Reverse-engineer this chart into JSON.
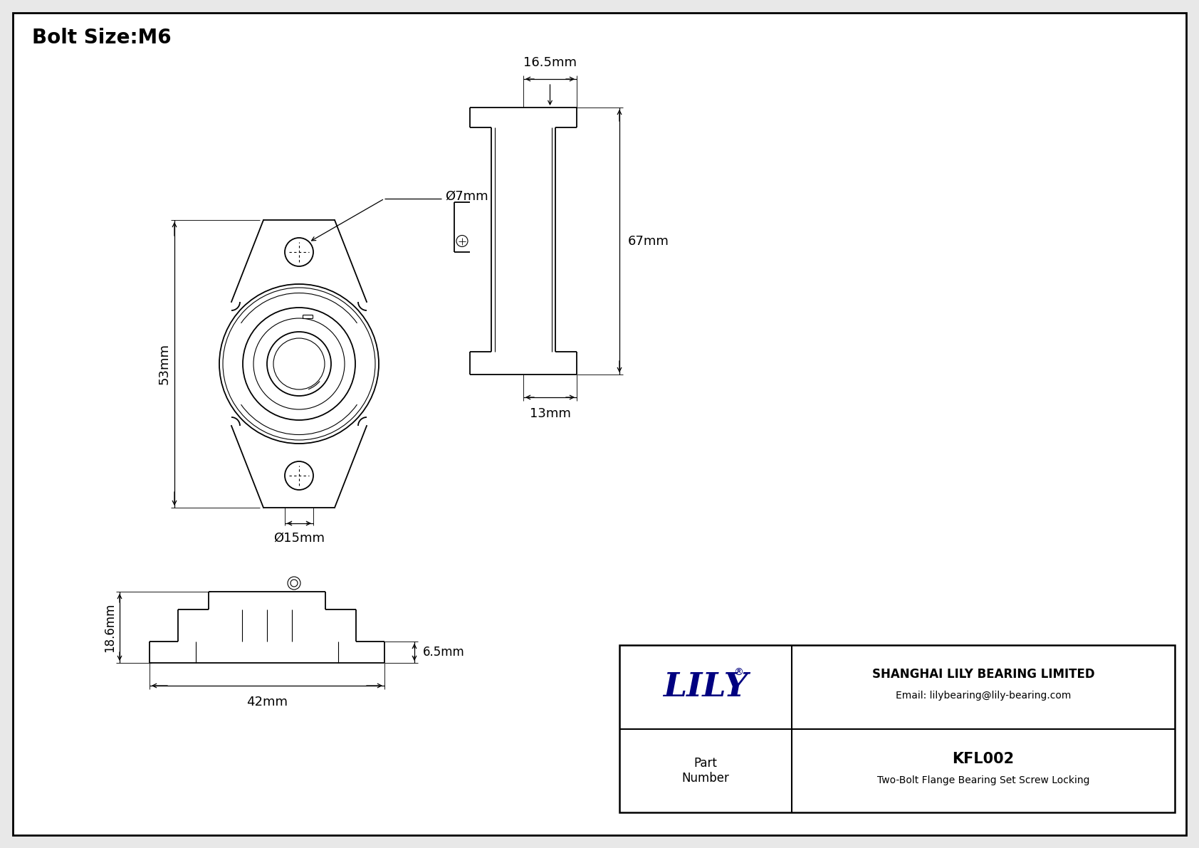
{
  "title": "Bolt Size:M6",
  "background_color": "#e8e8e8",
  "border_color": "#000000",
  "line_color": "#000000",
  "annotations": {
    "bolt_size": "Bolt Size:M6",
    "dim_7mm": "Ø7mm",
    "dim_15mm": "Ø15mm",
    "dim_53mm": "53mm",
    "dim_67mm": "67mm",
    "dim_16_5mm": "16.5mm",
    "dim_13mm": "13mm",
    "dim_18_6mm": "18.6mm",
    "dim_6_5mm": "6.5mm",
    "dim_42mm": "42mm"
  },
  "company": "LILY",
  "company_reg": "®",
  "company_full": "SHANGHAI LILY BEARING LIMITED",
  "company_email": "Email: lilybearing@lily-bearing.com",
  "part_number_label": "Part\nNumber",
  "part_number": "KFL002",
  "part_desc": "Two-Bolt Flange Bearing Set Screw Locking"
}
